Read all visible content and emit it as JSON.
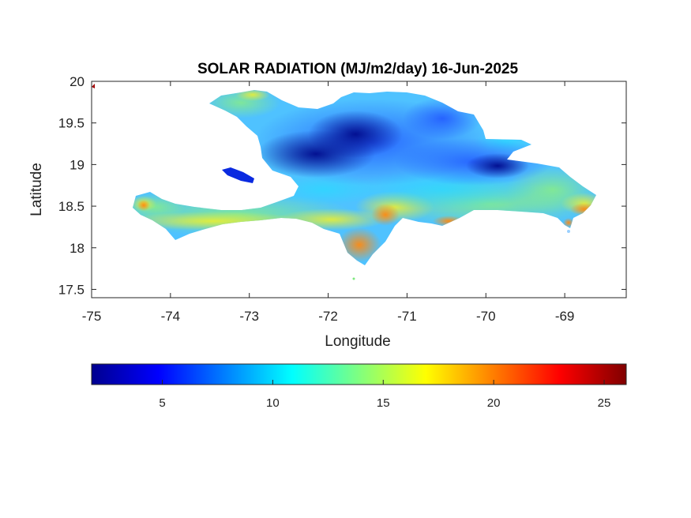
{
  "chart_data": {
    "type": "heatmap",
    "title": "SOLAR RADIATION (MJ/m2/day) 16-Jun-2025",
    "xlabel": "Longitude",
    "ylabel": "Latitude",
    "xlim": [
      -75,
      -68.22
    ],
    "ylim": [
      17.4,
      20
    ],
    "xticks": [
      -75,
      -74,
      -73,
      -72,
      -71,
      -70,
      -69
    ],
    "xtick_labels": [
      "-75",
      "-74",
      "-73",
      "-72",
      "-71",
      "-70",
      "-69"
    ],
    "yticks": [
      17.5,
      18,
      18.5,
      19,
      19.5,
      20
    ],
    "ytick_labels": [
      "17.5",
      "18",
      "18.5",
      "19",
      "19.5",
      "20"
    ],
    "colormap": "jet",
    "clim": [
      1.8,
      26
    ],
    "colorbar": {
      "orientation": "horizontal",
      "location": "below",
      "ticks": [
        5,
        10,
        15,
        20,
        25
      ],
      "tick_labels": [
        "5",
        "10",
        "15",
        "20",
        "25"
      ]
    },
    "field_samples": [
      {
        "lon": -72.1,
        "lat": 19.05,
        "value": 2
      },
      {
        "lon": -72.5,
        "lat": 19.3,
        "value": 4
      },
      {
        "lon": -71.7,
        "lat": 19.5,
        "value": 5
      },
      {
        "lon": -70.1,
        "lat": 19.0,
        "value": 5
      },
      {
        "lon": -70.6,
        "lat": 19.5,
        "value": 9
      },
      {
        "lon": -73.0,
        "lat": 19.8,
        "value": 12
      },
      {
        "lon": -73.5,
        "lat": 18.4,
        "value": 16
      },
      {
        "lon": -71.3,
        "lat": 18.35,
        "value": 21
      },
      {
        "lon": -71.75,
        "lat": 18.05,
        "value": 21
      },
      {
        "lon": -70.3,
        "lat": 18.35,
        "value": 20
      },
      {
        "lon": -68.9,
        "lat": 18.45,
        "value": 20
      },
      {
        "lon": -74.35,
        "lat": 18.55,
        "value": 20
      },
      {
        "lon": -69.3,
        "lat": 18.75,
        "value": 12
      },
      {
        "lon": -71.0,
        "lat": 18.8,
        "value": 12
      }
    ]
  },
  "colors": {
    "background": "#ffffff",
    "axes": "#262626",
    "jet_low": "#00008f",
    "jet_high": "#800000"
  }
}
